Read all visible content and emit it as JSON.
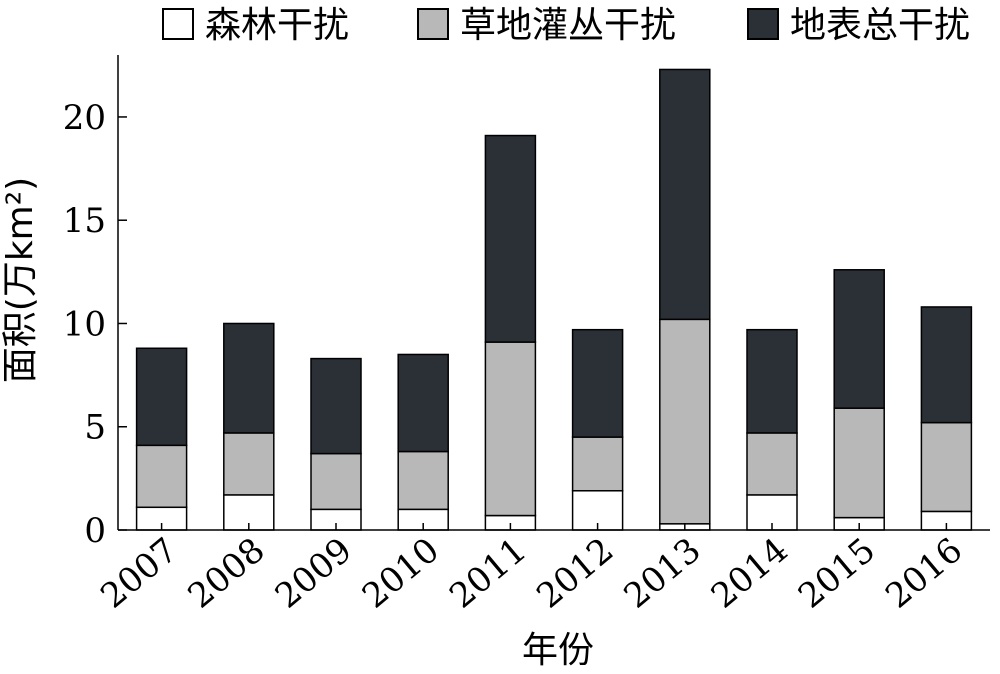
{
  "chart_data": {
    "type": "bar",
    "stacked": true,
    "categories": [
      "2007",
      "2008",
      "2009",
      "2010",
      "2011",
      "2012",
      "2013",
      "2014",
      "2015",
      "2016"
    ],
    "series": [
      {
        "name": "森林干扰",
        "color": "#ffffff",
        "values": [
          1.1,
          1.7,
          1.0,
          1.0,
          0.7,
          1.9,
          0.3,
          1.7,
          0.6,
          0.9
        ]
      },
      {
        "name": "草地灌丛干扰",
        "color": "#b8b8b8",
        "values": [
          3.0,
          3.0,
          2.7,
          2.8,
          8.4,
          2.6,
          9.9,
          3.0,
          5.3,
          4.3
        ]
      },
      {
        "name": "地表总干扰",
        "color": "#2b3036",
        "values": [
          4.7,
          5.3,
          4.6,
          4.7,
          10.0,
          5.2,
          12.1,
          5.0,
          6.7,
          5.6
        ]
      }
    ],
    "xlabel": "年份",
    "ylabel": "面积(万km²)",
    "ylim": [
      0,
      23
    ],
    "yticks": [
      0,
      5,
      10,
      15,
      20
    ],
    "legend_position": "top",
    "grid": false
  }
}
